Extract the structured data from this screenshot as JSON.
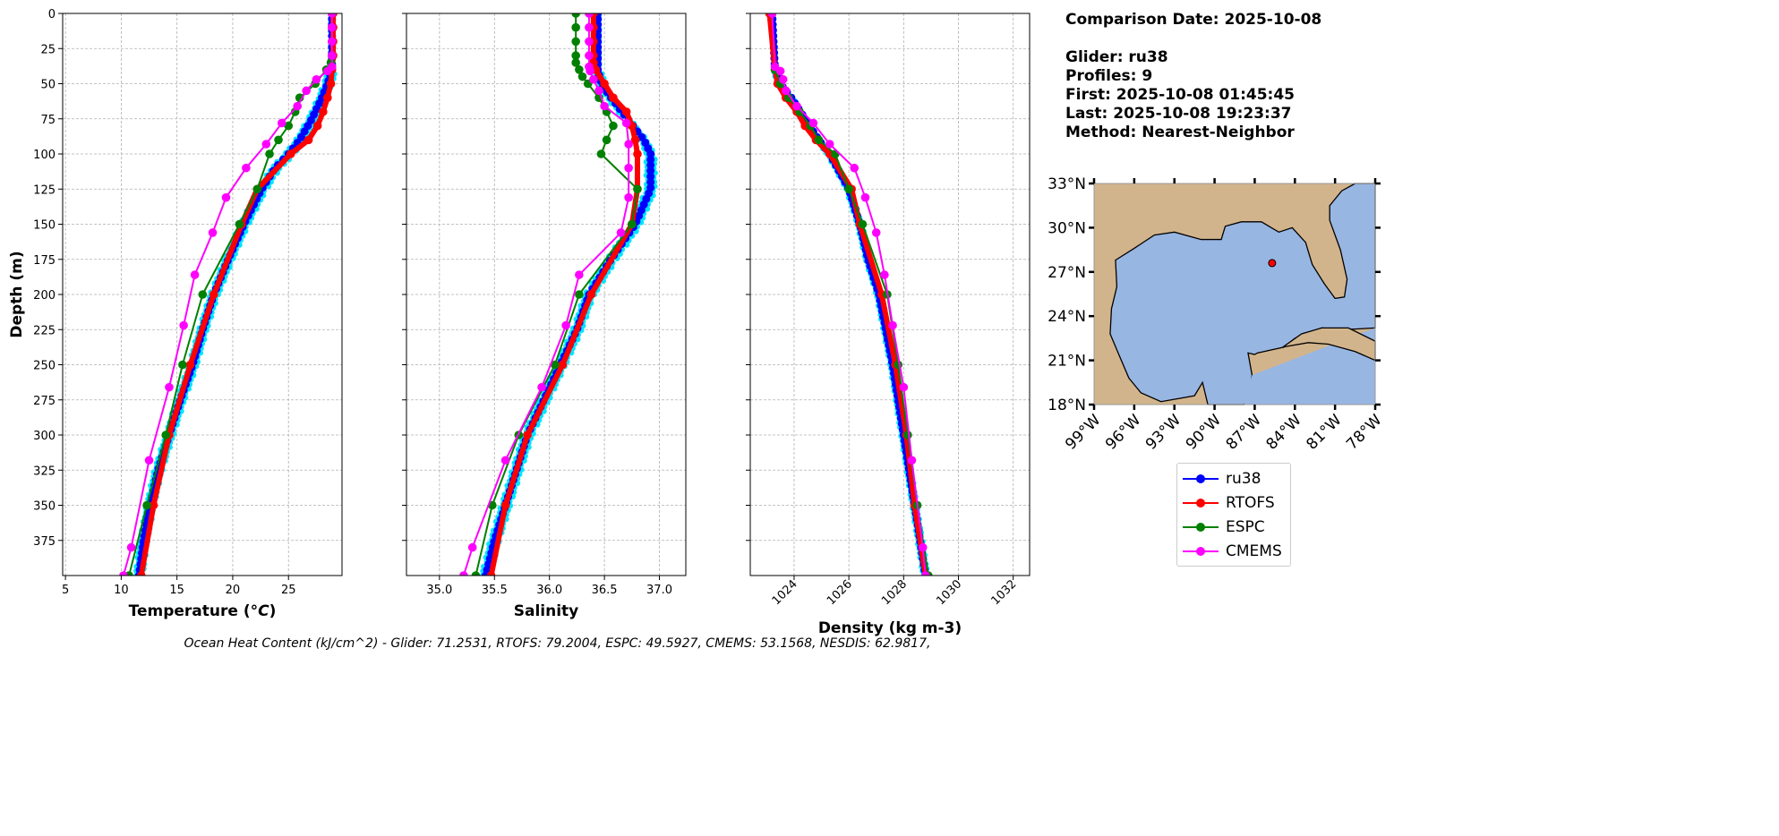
{
  "info": {
    "comparison": "Comparison Date: 2025-10-08",
    "glider": "Glider: ru38",
    "profiles": "Profiles: 9",
    "first": "First: 2025-10-08 01:45:45",
    "last": "Last: 2025-10-08 19:23:37",
    "method": "Method: Nearest-Neighbor"
  },
  "caption": "Ocean Heat Content (kJ/cm^2) - Glider: 71.2531,  RTOFS: 79.2004,  ESPC: 49.5927,  CMEMS: 53.1568,  NESDIS: 62.9817,",
  "legend": [
    {
      "label": "ru38",
      "color": "#0000ff"
    },
    {
      "label": "RTOFS",
      "color": "#ff0000"
    },
    {
      "label": "ESPC",
      "color": "#008000"
    },
    {
      "label": "CMEMS",
      "color": "#ff00ff"
    }
  ],
  "colors": {
    "profiles": "#00e5ff",
    "land": "#d2b48c",
    "ocean": "#98b6e2",
    "glider_marker": "#ff0000"
  },
  "chart_data": [
    {
      "type": "line",
      "id": "temp",
      "xlabel": "Temperature (°C)",
      "ylabel": "Depth (m)",
      "xlim": [
        4.75,
        29.8
      ],
      "ylim": [
        400,
        0
      ],
      "grid": true,
      "xticks": [
        5,
        10,
        15,
        20,
        25
      ],
      "yticks": [
        0,
        25,
        50,
        75,
        100,
        125,
        150,
        175,
        200,
        225,
        250,
        275,
        300,
        325,
        350,
        375
      ],
      "profile_spread": 0.35,
      "series": [
        {
          "name": "ru38",
          "depth": [
            0,
            40,
            50,
            60,
            75,
            90,
            100,
            110,
            125,
            150,
            175,
            200,
            225,
            250,
            275,
            300,
            325,
            350,
            375,
            400
          ],
          "values": [
            28.9,
            28.9,
            28.5,
            28.0,
            27.1,
            26.0,
            25.0,
            23.8,
            22.6,
            21.0,
            19.6,
            18.3,
            17.3,
            16.4,
            15.3,
            14.3,
            13.3,
            12.6,
            12.0,
            11.6
          ]
        },
        {
          "name": "RTOFS",
          "depth": [
            0,
            10,
            20,
            30,
            40,
            50,
            60,
            70,
            80,
            90,
            100,
            125,
            150,
            200,
            250,
            300,
            350,
            400
          ],
          "values": [
            29.0,
            29.0,
            29.0,
            29.0,
            28.9,
            28.8,
            28.5,
            28.1,
            27.6,
            26.8,
            25.2,
            22.2,
            20.8,
            18.3,
            16.2,
            14.3,
            12.9,
            11.8
          ]
        },
        {
          "name": "ESPC",
          "depth": [
            0,
            10,
            20,
            30,
            35,
            40,
            50,
            60,
            70,
            80,
            90,
            100,
            125,
            150,
            200,
            250,
            300,
            350,
            400
          ],
          "values": [
            28.9,
            28.9,
            28.9,
            28.9,
            28.8,
            28.4,
            27.4,
            26.0,
            25.6,
            25.0,
            24.1,
            23.3,
            22.2,
            20.6,
            17.3,
            15.5,
            14.0,
            12.3,
            10.7
          ]
        },
        {
          "name": "CMEMS",
          "depth": [
            0,
            10,
            20,
            30,
            38,
            41,
            47,
            55,
            66,
            78,
            93,
            110,
            131,
            156,
            186,
            222,
            266,
            318,
            380,
            400
          ],
          "values": [
            28.9,
            28.9,
            28.9,
            28.9,
            28.9,
            28.5,
            27.5,
            26.6,
            25.8,
            24.4,
            23.0,
            21.2,
            19.4,
            18.2,
            16.6,
            15.6,
            14.3,
            12.5,
            10.9,
            10.2
          ]
        }
      ]
    },
    {
      "type": "line",
      "id": "salt",
      "xlabel": "Salinity",
      "ylabel": "",
      "xlim": [
        34.7,
        37.24
      ],
      "ylim": [
        400,
        0
      ],
      "grid": true,
      "xticks": [
        35.0,
        35.5,
        36.0,
        36.5,
        37.0
      ],
      "xticklabels": [
        "35.0",
        "35.5",
        "36.0",
        "36.5",
        "37.0"
      ],
      "yticks": [
        0,
        25,
        50,
        75,
        100,
        125,
        150,
        175,
        200,
        225,
        250,
        275,
        300,
        325,
        350,
        375
      ],
      "profile_spread": 0.04,
      "series": [
        {
          "name": "ru38",
          "depth": [
            0,
            40,
            50,
            60,
            70,
            80,
            90,
            100,
            125,
            150,
            175,
            200,
            225,
            250,
            275,
            300,
            325,
            350,
            375,
            400
          ],
          "values": [
            36.44,
            36.44,
            36.47,
            36.56,
            36.66,
            36.76,
            36.86,
            36.92,
            36.92,
            36.78,
            36.56,
            36.36,
            36.25,
            36.1,
            35.95,
            35.8,
            35.7,
            35.6,
            35.5,
            35.42
          ]
        },
        {
          "name": "RTOFS",
          "depth": [
            0,
            10,
            20,
            30,
            35,
            40,
            50,
            60,
            70,
            80,
            90,
            100,
            125,
            150,
            200,
            250,
            300,
            350,
            400
          ],
          "values": [
            36.4,
            36.4,
            36.4,
            36.4,
            36.4,
            36.42,
            36.5,
            36.58,
            36.7,
            36.75,
            36.78,
            36.8,
            36.8,
            36.75,
            36.38,
            36.12,
            35.8,
            35.6,
            35.47
          ]
        },
        {
          "name": "ESPC",
          "depth": [
            0,
            10,
            20,
            30,
            35,
            40,
            45,
            50,
            60,
            70,
            80,
            90,
            100,
            125,
            150,
            200,
            250,
            300,
            350,
            400
          ],
          "values": [
            36.24,
            36.24,
            36.24,
            36.24,
            36.24,
            36.27,
            36.3,
            36.35,
            36.45,
            36.52,
            36.58,
            36.52,
            36.47,
            36.8,
            36.75,
            36.27,
            36.05,
            35.72,
            35.48,
            35.33
          ]
        },
        {
          "name": "CMEMS",
          "depth": [
            0,
            10,
            20,
            30,
            38,
            41,
            47,
            55,
            66,
            78,
            93,
            110,
            131,
            156,
            186,
            222,
            266,
            318,
            380,
            400
          ],
          "values": [
            36.36,
            36.36,
            36.36,
            36.36,
            36.36,
            36.37,
            36.4,
            36.45,
            36.5,
            36.7,
            36.72,
            36.72,
            36.72,
            36.65,
            36.27,
            36.15,
            35.93,
            35.6,
            35.3,
            35.22
          ]
        }
      ]
    },
    {
      "type": "line",
      "id": "dens",
      "xlabel": "Density (kg m-3)",
      "ylabel": "",
      "xlim": [
        1022.4,
        1032.6
      ],
      "ylim": [
        400,
        0
      ],
      "grid": true,
      "xticks": [
        1024,
        1026,
        1028,
        1030,
        1032
      ],
      "xticklabels": [
        "1024",
        "1026",
        "1028",
        "1030",
        "1032"
      ],
      "yticks": [
        0,
        25,
        50,
        75,
        100,
        125,
        150,
        175,
        200,
        225,
        250,
        275,
        300,
        325,
        350,
        375
      ],
      "profile_spread": 0.1,
      "series": [
        {
          "name": "ru38",
          "depth": [
            0,
            40,
            50,
            60,
            75,
            90,
            100,
            125,
            150,
            175,
            200,
            250,
            300,
            350,
            400
          ],
          "values": [
            1023.2,
            1023.3,
            1023.5,
            1023.9,
            1024.4,
            1024.9,
            1025.3,
            1026.0,
            1026.4,
            1026.7,
            1027.1,
            1027.6,
            1028.0,
            1028.4,
            1028.8
          ]
        },
        {
          "name": "RTOFS",
          "depth": [
            0,
            40,
            50,
            60,
            70,
            80,
            90,
            100,
            125,
            150,
            200,
            250,
            300,
            350,
            400
          ],
          "values": [
            1023.1,
            1023.3,
            1023.4,
            1023.7,
            1024.1,
            1024.4,
            1024.8,
            1025.3,
            1026.1,
            1026.4,
            1027.2,
            1027.7,
            1028.1,
            1028.4,
            1028.8
          ]
        },
        {
          "name": "ESPC",
          "depth": [
            0,
            40,
            50,
            60,
            70,
            80,
            90,
            100,
            125,
            150,
            200,
            250,
            300,
            350,
            400
          ],
          "values": [
            1023.2,
            1023.3,
            1023.5,
            1023.8,
            1024.2,
            1024.6,
            1024.9,
            1025.5,
            1026.0,
            1026.5,
            1027.4,
            1027.8,
            1028.15,
            1028.5,
            1028.9
          ]
        },
        {
          "name": "CMEMS",
          "depth": [
            0,
            38,
            41,
            47,
            55,
            66,
            78,
            93,
            110,
            131,
            156,
            186,
            222,
            266,
            318,
            380,
            400
          ],
          "values": [
            1023.2,
            1023.3,
            1023.5,
            1023.6,
            1023.7,
            1024.1,
            1024.7,
            1025.3,
            1026.2,
            1026.6,
            1027.0,
            1027.3,
            1027.6,
            1028.0,
            1028.3,
            1028.7,
            1028.8
          ]
        }
      ]
    },
    {
      "type": "map",
      "id": "map",
      "lon_range": [
        -99,
        -78
      ],
      "lat_range": [
        18,
        33
      ],
      "lon_ticks": [
        "99°W",
        "96°W",
        "93°W",
        "90°W",
        "87°W",
        "84°W",
        "81°W",
        "78°W"
      ],
      "lat_ticks": [
        "33°N",
        "30°N",
        "27°N",
        "24°N",
        "21°N",
        "18°N"
      ],
      "glider_position": {
        "lon": -85.7,
        "lat": 27.6
      }
    }
  ]
}
